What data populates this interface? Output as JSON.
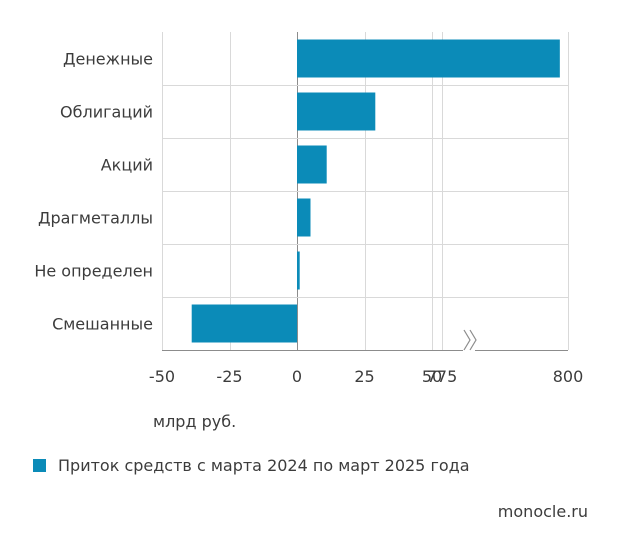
{
  "chart_data": {
    "type": "bar",
    "orientation": "horizontal",
    "categories": [
      "Денежные",
      "Облигаций",
      "Акций",
      "Драгметаллы",
      "Не определен",
      "Смешанные"
    ],
    "series": [
      {
        "name": "Приток средств с марта 2024 по март 2025 года",
        "values": [
          797,
          29,
          11,
          5,
          1,
          -39
        ],
        "color": "#0b8bb8"
      }
    ],
    "xlabel": "млрд руб.",
    "xlim": [
      -50,
      800
    ],
    "axis_break": {
      "after": 50,
      "resume": 775
    },
    "x_ticks": [
      "-50",
      "-25",
      "0",
      "25",
      "50",
      "775",
      "800"
    ],
    "grid": true
  },
  "footer": {
    "source": "monocle.ru"
  },
  "colors": {
    "bar": "#0b8bb8",
    "grid": "#d9d9d9",
    "text": "#3c3c3c"
  }
}
